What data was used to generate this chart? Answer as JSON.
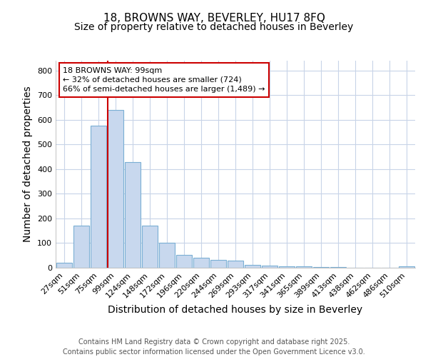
{
  "title1": "18, BROWNS WAY, BEVERLEY, HU17 8FQ",
  "title2": "Size of property relative to detached houses in Beverley",
  "xlabel": "Distribution of detached houses by size in Beverley",
  "ylabel": "Number of detached properties",
  "categories": [
    "27sqm",
    "51sqm",
    "75sqm",
    "99sqm",
    "124sqm",
    "148sqm",
    "172sqm",
    "196sqm",
    "220sqm",
    "244sqm",
    "269sqm",
    "293sqm",
    "317sqm",
    "341sqm",
    "365sqm",
    "389sqm",
    "413sqm",
    "438sqm",
    "462sqm",
    "486sqm",
    "510sqm"
  ],
  "values": [
    20,
    170,
    575,
    640,
    430,
    170,
    100,
    52,
    40,
    33,
    30,
    12,
    8,
    5,
    5,
    3,
    2,
    1,
    1,
    1,
    5
  ],
  "bar_color": "#c8d8ee",
  "bar_edge_color": "#7aafd4",
  "red_line_index": 3,
  "ylim": [
    0,
    840
  ],
  "yticks": [
    0,
    100,
    200,
    300,
    400,
    500,
    600,
    700,
    800
  ],
  "annotation_text": "18 BROWNS WAY: 99sqm\n← 32% of detached houses are smaller (724)\n66% of semi-detached houses are larger (1,489) →",
  "annotation_box_color": "#ffffff",
  "annotation_box_edge": "#cc0000",
  "fig_bg_color": "#ffffff",
  "plot_bg_color": "#ffffff",
  "grid_color": "#c8d4e8",
  "footer1": "Contains HM Land Registry data © Crown copyright and database right 2025.",
  "footer2": "Contains public sector information licensed under the Open Government Licence v3.0.",
  "title_fontsize": 11,
  "subtitle_fontsize": 10,
  "axis_label_fontsize": 10,
  "tick_fontsize": 8,
  "footer_fontsize": 7
}
